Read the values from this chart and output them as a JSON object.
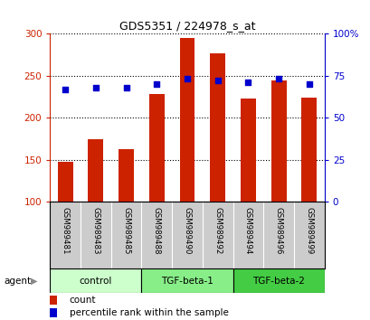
{
  "title": "GDS5351 / 224978_s_at",
  "samples": [
    "GSM989481",
    "GSM989483",
    "GSM989485",
    "GSM989488",
    "GSM989490",
    "GSM989492",
    "GSM989494",
    "GSM989496",
    "GSM989499"
  ],
  "bar_values": [
    147,
    174,
    162,
    228,
    295,
    276,
    223,
    244,
    224
  ],
  "percentile_values": [
    67,
    68,
    68,
    70,
    73,
    72,
    71,
    73,
    70
  ],
  "bar_color": "#cc2200",
  "dot_color": "#0000cc",
  "ylim_left": [
    100,
    300
  ],
  "ylim_right": [
    0,
    100
  ],
  "yticks_left": [
    100,
    150,
    200,
    250,
    300
  ],
  "yticks_right": [
    0,
    25,
    50,
    75,
    100
  ],
  "yticklabels_right": [
    "0",
    "25",
    "50",
    "75",
    "100%"
  ],
  "groups": [
    {
      "label": "control",
      "span": [
        0,
        3
      ],
      "color": "#ccffcc"
    },
    {
      "label": "TGF-beta-1",
      "span": [
        3,
        6
      ],
      "color": "#88ee88"
    },
    {
      "label": "TGF-beta-2",
      "span": [
        6,
        9
      ],
      "color": "#44cc44"
    }
  ],
  "agent_label": "agent",
  "legend_count_label": "count",
  "legend_percentile_label": "percentile rank within the sample",
  "background_color": "#ffffff",
  "sample_bg_color": "#cccccc",
  "left_tick_color": "#cc2200",
  "right_tick_color": "#0000cc"
}
